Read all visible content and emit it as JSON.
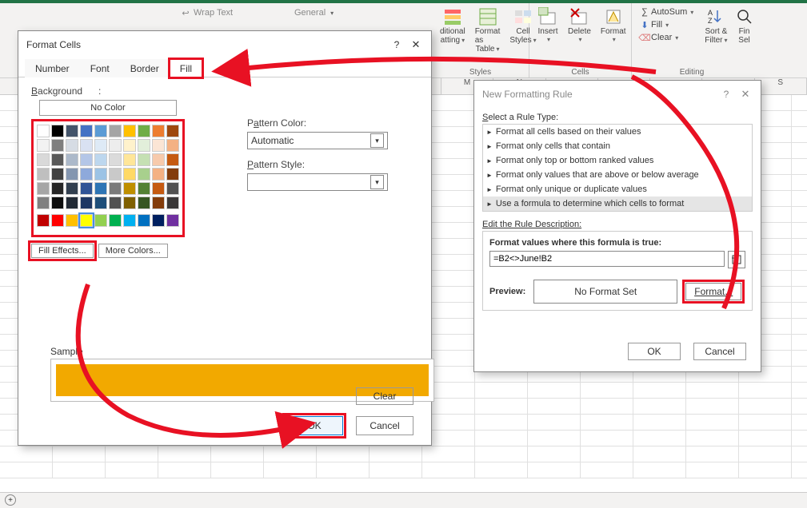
{
  "annotation": {
    "highlight_color": "#e81123",
    "arrow_color": "#e81123",
    "arrow_width": 6
  },
  "ribbon": {
    "prefill": {
      "wrap_text": "Wrap Text",
      "general": "General"
    },
    "styles": {
      "label": "Styles",
      "conditional": "ditional",
      "conditional2": "atting",
      "format_as": "Format as",
      "table": "Table",
      "cell": "Cell",
      "styles_btn": "Styles"
    },
    "cells": {
      "label": "Cells",
      "insert": "Insert",
      "delete": "Delete",
      "format": "Format"
    },
    "editing": {
      "label": "Editing",
      "autosum": "AutoSum",
      "fill": "Fill",
      "clear": "Clear",
      "sort": "Sort &",
      "filter": "Filter",
      "find": "Fin",
      "select": "Sel"
    }
  },
  "grid": {
    "cols": [
      "",
      "",
      "",
      "",
      "",
      "",
      "",
      "",
      "M",
      "N",
      "",
      "",
      "",
      "",
      "S"
    ]
  },
  "format_cells": {
    "title": "Format Cells",
    "tabs": {
      "number": "Number",
      "font": "Font",
      "border": "Border",
      "fill": "Fill"
    },
    "bg_label": "Background",
    "no_color": "No Color",
    "fill_effects": "Fill Effects...",
    "more_colors": "More Colors...",
    "pattern_color_label": "Pattern Color:",
    "pattern_color_value": "Automatic",
    "pattern_style_label": "Pattern Style:",
    "sample_label": "Sample",
    "sample_fill_color": "#f2a900",
    "clear": "Clear",
    "ok": "OK",
    "cancel": "Cancel",
    "palette_theme_rows": [
      [
        "#ffffff",
        "#000000",
        "#44546a",
        "#4472c4",
        "#5b9bd5",
        "#a5a5a5",
        "#ffc000",
        "#70ad47",
        "#ed7d31",
        "#9e480e"
      ],
      [
        "#f2f2f2",
        "#7f7f7f",
        "#d6dce4",
        "#d9e1f2",
        "#deeaf6",
        "#ededed",
        "#fff2cc",
        "#e2efda",
        "#fbe5d5",
        "#f4b183"
      ],
      [
        "#d9d9d9",
        "#595959",
        "#acb9ca",
        "#b4c6e7",
        "#bdd7ee",
        "#dbdbdb",
        "#ffe699",
        "#c5e0b3",
        "#f7caac",
        "#c55a11"
      ],
      [
        "#bfbfbf",
        "#404040",
        "#8496b0",
        "#8ea9db",
        "#9cc3e5",
        "#c9c9c9",
        "#ffd965",
        "#a8d08d",
        "#f4b183",
        "#833c0b"
      ],
      [
        "#a6a6a6",
        "#262626",
        "#323f4f",
        "#305496",
        "#2e75b5",
        "#7b7b7b",
        "#bf8f00",
        "#548135",
        "#c55a11",
        "#525252"
      ],
      [
        "#808080",
        "#0d0d0d",
        "#222a35",
        "#1f3864",
        "#1e4e79",
        "#525252",
        "#7f6000",
        "#375623",
        "#833c0b",
        "#3a3838"
      ]
    ],
    "palette_standard": [
      "#c00000",
      "#ff0000",
      "#ffc000",
      "#ffff00",
      "#92d050",
      "#00b050",
      "#00b0f0",
      "#0070c0",
      "#002060",
      "#7030a0"
    ],
    "selected_swatch": "#ffff00"
  },
  "new_rule": {
    "title": "New Formatting Rule",
    "select_label": "Select a Rule Type:",
    "rules": [
      "Format all cells based on their values",
      "Format only cells that contain",
      "Format only top or bottom ranked values",
      "Format only values that are above or below average",
      "Format only unique or duplicate values",
      "Use a formula to determine which cells to format"
    ],
    "selected_index": 5,
    "edit_label": "Edit the Rule Description:",
    "formula_label": "Format values where this formula is true:",
    "formula_value": "=B2<>June!B2",
    "preview_label": "Preview:",
    "preview_value": "No Format Set",
    "format_btn": "Format...",
    "ok": "OK",
    "cancel": "Cancel"
  }
}
